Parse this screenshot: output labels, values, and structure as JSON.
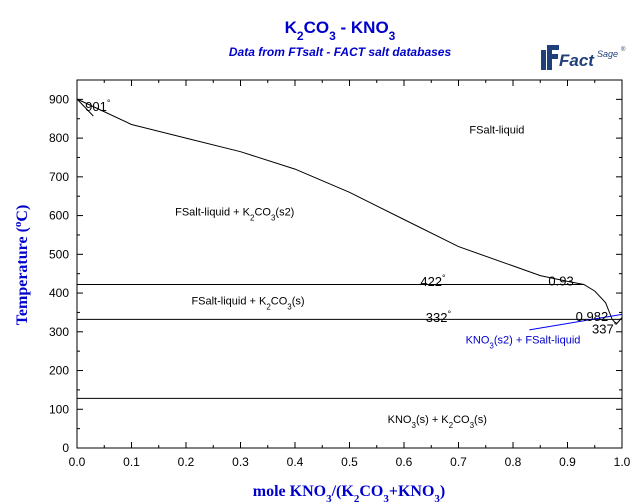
{
  "chart_data": {
    "type": "line",
    "title": "K2CO3 - KNO3",
    "title_parts": [
      {
        "t": "K",
        "sub": false
      },
      {
        "t": "2",
        "sub": true
      },
      {
        "t": "CO",
        "sub": false
      },
      {
        "t": "3",
        "sub": true
      },
      {
        "t": " - KNO",
        "sub": false
      },
      {
        "t": "3",
        "sub": true
      }
    ],
    "subtitle": "Data from FTsalt - FACT salt databases",
    "logo": {
      "text_main": "Fact",
      "text_sup": "Sage",
      "mark": "®"
    },
    "xlabel": "mole KNO3/(K2CO3+KNO3)",
    "xlabel_parts": [
      {
        "t": "mole KNO",
        "sub": false
      },
      {
        "t": "3",
        "sub": true
      },
      {
        "t": "/(K",
        "sub": false
      },
      {
        "t": "2",
        "sub": true
      },
      {
        "t": "CO",
        "sub": false
      },
      {
        "t": "3",
        "sub": true
      },
      {
        "t": "+KNO",
        "sub": false
      },
      {
        "t": "3",
        "sub": true
      },
      {
        "t": ")",
        "sub": false
      }
    ],
    "ylabel": "Temperature (°C)",
    "ylabel_parts": [
      {
        "t": "Temperature (",
        "sup": false
      },
      {
        "t": "o",
        "sup": true
      },
      {
        "t": "C)",
        "sup": false
      }
    ],
    "xlim": [
      0,
      1
    ],
    "ylim": [
      0,
      950
    ],
    "xticks": [
      "0.0",
      "0.1",
      "0.2",
      "0.3",
      "0.4",
      "0.5",
      "0.6",
      "0.7",
      "0.8",
      "0.9",
      "1.0"
    ],
    "yticks": [
      "0",
      "100",
      "200",
      "300",
      "400",
      "500",
      "600",
      "700",
      "800",
      "900"
    ],
    "xtick_values": [
      0,
      0.1,
      0.2,
      0.3,
      0.4,
      0.5,
      0.6,
      0.7,
      0.8,
      0.9,
      1.0
    ],
    "ytick_values": [
      0,
      100,
      200,
      300,
      400,
      500,
      600,
      700,
      800,
      900
    ],
    "grid": false,
    "colors": {
      "axes": "#000000",
      "text_blue": "#0000cc",
      "blue_line": "#0000ff",
      "curve": "#000000"
    },
    "series": [
      {
        "name": "liquidus",
        "color": "#000000",
        "points": [
          [
            0.0,
            901
          ],
          [
            0.1,
            835
          ],
          [
            0.2,
            800
          ],
          [
            0.3,
            765
          ],
          [
            0.4,
            720
          ],
          [
            0.5,
            660
          ],
          [
            0.6,
            590
          ],
          [
            0.7,
            520
          ],
          [
            0.8,
            470
          ],
          [
            0.85,
            445
          ],
          [
            0.9,
            430
          ],
          [
            0.93,
            422
          ],
          [
            0.95,
            405
          ],
          [
            0.97,
            375
          ],
          [
            0.982,
            332
          ],
          [
            0.99,
            320
          ],
          [
            1.0,
            337
          ]
        ]
      },
      {
        "name": "left liquidus segment",
        "color": "#000000",
        "points": [
          [
            0.0,
            901
          ],
          [
            0.03,
            857
          ]
        ]
      }
    ],
    "isotherms": [
      {
        "temp": 422,
        "x_start": 0.0,
        "x_end": 0.93
      },
      {
        "temp": 332,
        "x_start": 0.0,
        "x_end": 1.0
      },
      {
        "temp": 128,
        "x_start": 0.0,
        "x_end": 1.0
      }
    ],
    "blue_line": [
      [
        0.83,
        305
      ],
      [
        1.0,
        345
      ]
    ],
    "annotations": [
      {
        "text": "901",
        "sup": "°",
        "x": 0.015,
        "y": 870,
        "color": "#000000"
      },
      {
        "text": "422",
        "sup": "°",
        "x": 0.63,
        "y": 418,
        "color": "#000000"
      },
      {
        "text": "0.93",
        "sup": "",
        "x": 0.865,
        "y": 420,
        "color": "#000000"
      },
      {
        "text": "332",
        "sup": "°",
        "x": 0.64,
        "y": 325,
        "color": "#000000"
      },
      {
        "text": "0.982",
        "sup": "",
        "x": 0.915,
        "y": 328,
        "color": "#000000"
      },
      {
        "text": "337",
        "sup": "°",
        "x": 0.945,
        "y": 295,
        "color": "#000000"
      }
    ],
    "region_labels": [
      {
        "parts": [
          {
            "t": "FSalt-liquid",
            "sub": false
          }
        ],
        "x": 0.72,
        "y": 812,
        "color": "#000000"
      },
      {
        "parts": [
          {
            "t": "FSalt-liquid + K",
            "sub": false
          },
          {
            "t": "2",
            "sub": true
          },
          {
            "t": "CO",
            "sub": false
          },
          {
            "t": "3",
            "sub": true
          },
          {
            "t": "(s2)",
            "sub": false
          }
        ],
        "x": 0.18,
        "y": 600,
        "color": "#000000"
      },
      {
        "parts": [
          {
            "t": "FSalt-liquid + K",
            "sub": false
          },
          {
            "t": "2",
            "sub": true
          },
          {
            "t": "CO",
            "sub": false
          },
          {
            "t": "3",
            "sub": true
          },
          {
            "t": "(s)",
            "sub": false
          }
        ],
        "x": 0.21,
        "y": 370,
        "color": "#000000"
      },
      {
        "parts": [
          {
            "t": "KNO",
            "sub": false
          },
          {
            "t": "3",
            "sub": true
          },
          {
            "t": "(s2) + FSalt-liquid",
            "sub": false
          }
        ],
        "x": 0.713,
        "y": 270,
        "color": "#0000cc"
      },
      {
        "parts": [
          {
            "t": "KNO",
            "sub": false
          },
          {
            "t": "3",
            "sub": true
          },
          {
            "t": "(s) + K",
            "sub": false
          },
          {
            "t": "2",
            "sub": true
          },
          {
            "t": "CO",
            "sub": false
          },
          {
            "t": "3",
            "sub": true
          },
          {
            "t": "(s)",
            "sub": false
          }
        ],
        "x": 0.57,
        "y": 65,
        "color": "#000000"
      }
    ]
  }
}
